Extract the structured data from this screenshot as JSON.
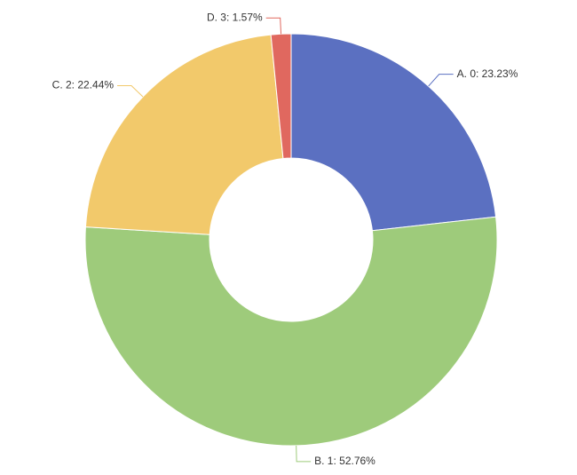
{
  "chart_data": {
    "type": "pie",
    "values": [
      23.23,
      52.76,
      22.44,
      1.57
    ],
    "value_labels": [
      "A. 0: 23.23%",
      "B. 1: 52.76%",
      "C. 2: 22.44%",
      "D. 3: 1.57%"
    ],
    "colors": [
      "#5b70c1",
      "#9ecb7b",
      "#f2c96b",
      "#e0685f"
    ]
  }
}
